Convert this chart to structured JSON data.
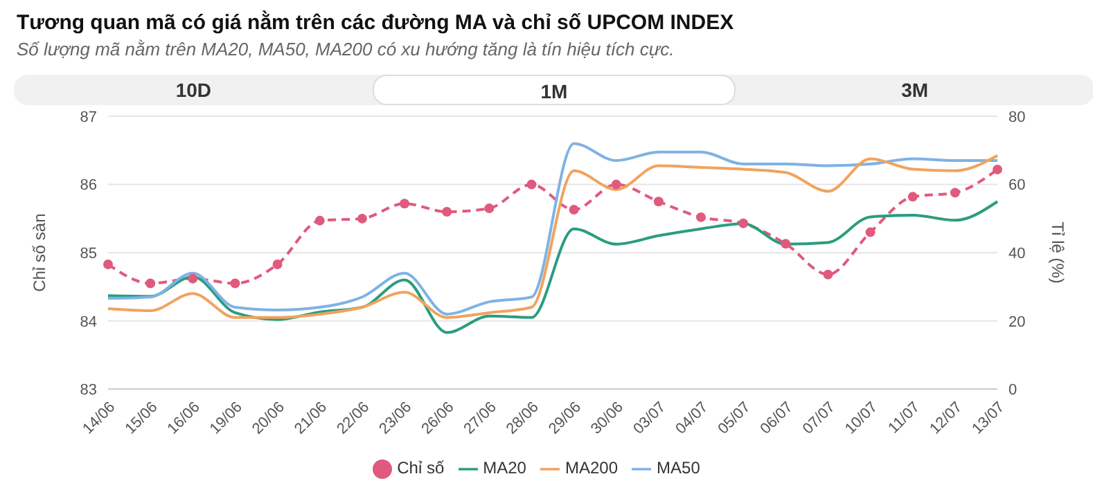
{
  "chart_data": {
    "type": "line",
    "title": "Tương quan mã có giá nằm trên các đường MA và chỉ số UPCOM INDEX",
    "subtitle": "Số lượng mã nằm trên MA20, MA50, MA200 có xu hướng tăng là tín hiệu tích cực.",
    "annotations": [
      "10D",
      "1M",
      "3M"
    ],
    "ylabel": "Chỉ số sàn",
    "y2label": "Tỉ lệ (%)",
    "categories": [
      "14/06",
      "15/06",
      "16/06",
      "19/06",
      "20/06",
      "21/06",
      "22/06",
      "23/06",
      "26/06",
      "27/06",
      "28/06",
      "29/06",
      "30/06",
      "03/07",
      "04/07",
      "05/07",
      "06/07",
      "07/07",
      "10/07",
      "11/07",
      "12/07",
      "13/07"
    ],
    "ylim": [
      83,
      87
    ],
    "yticks": [
      83,
      84,
      85,
      86,
      87
    ],
    "y2lim": [
      0,
      80
    ],
    "y2ticks": [
      0,
      20,
      40,
      60,
      80
    ],
    "grid": "y",
    "legend": "bottom",
    "series": [
      {
        "name": "Chỉ số",
        "color": "#e05a7d",
        "axis": "y",
        "marker": "circle",
        "line_style": "dashed",
        "values": [
          84.83,
          84.55,
          84.62,
          84.55,
          84.83,
          85.47,
          85.5,
          85.72,
          85.6,
          85.65,
          86.0,
          85.63,
          86.0,
          85.75,
          85.52,
          85.43,
          85.13,
          84.68,
          85.3,
          85.82,
          85.88,
          86.22
        ]
      },
      {
        "name": "MA20",
        "color": "#2a9d7f",
        "axis": "y2",
        "marker": "none",
        "line_style": "solid",
        "values": [
          27.4,
          27.2,
          33,
          22.4,
          20.4,
          22.6,
          24,
          32,
          16.6,
          21.4,
          21,
          47,
          42.5,
          45,
          47,
          48.5,
          42.5,
          43,
          50.5,
          51,
          49.5,
          55
        ]
      },
      {
        "name": "MA50",
        "color": "#7fb2e5",
        "axis": "y2",
        "marker": "none",
        "line_style": "solid",
        "values": [
          26.6,
          27,
          34,
          24,
          23.2,
          24,
          27,
          34,
          22,
          25.6,
          27,
          72,
          67,
          69.5,
          69.5,
          66,
          66,
          65.5,
          66,
          67.5,
          67,
          67
        ]
      },
      {
        "name": "MA200",
        "color": "#f0a35e",
        "axis": "y2",
        "marker": "none",
        "line_style": "solid",
        "values": [
          23.6,
          23,
          28,
          21,
          21,
          22,
          24,
          28.4,
          21,
          22.4,
          24,
          64,
          58.5,
          65.5,
          65,
          64.5,
          63.5,
          58,
          67.5,
          64.5,
          64,
          68.5
        ]
      }
    ]
  }
}
